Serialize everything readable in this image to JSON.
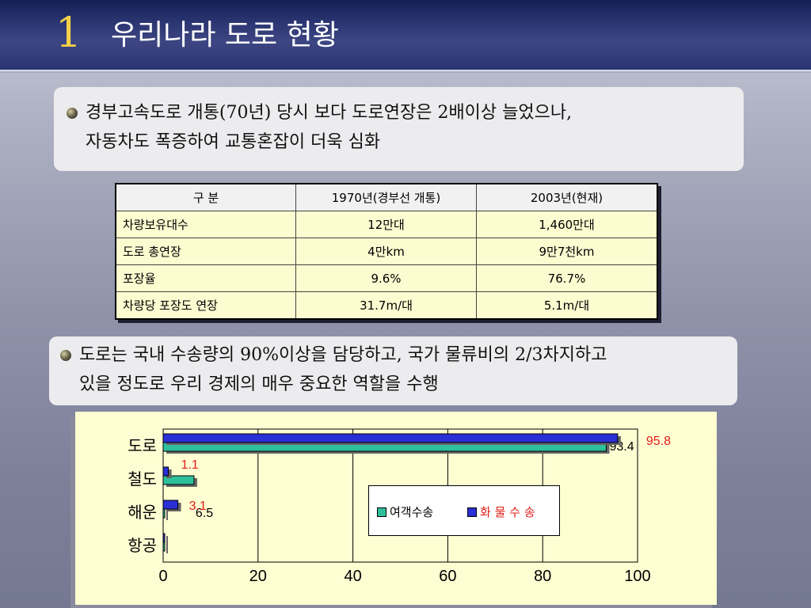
{
  "slide": {
    "number": "1",
    "title": "우리나라 도로 현황"
  },
  "point1": {
    "line1": "경부고속도로 개통(70년) 당시 보다 도로연장은 2배이상 늘었으나,",
    "line2": "자동차도 폭증하여 교통혼잡이 더욱 심화"
  },
  "table": {
    "headers": [
      "구 분",
      "1970년(경부선 개통)",
      "2003년(현재)"
    ],
    "rows": [
      [
        "차량보유대수",
        "12만대",
        "1,460만대"
      ],
      [
        "도로 총연장",
        "4만km",
        "9만7천km"
      ],
      [
        "포장율",
        "9.6%",
        "76.7%"
      ],
      [
        "차량당 포장도 연장",
        "31.7m/대",
        "5.1m/대"
      ]
    ]
  },
  "point2": {
    "line1": "도로는 국내 수송량의 90%이상을 담당하고, 국가 물류비의 2/3차지하고",
    "line2": "있을 정도로 우리 경제의 매우 중요한 역할을 수행"
  },
  "chart_data": {
    "type": "bar",
    "orientation": "horizontal",
    "categories": [
      "도로",
      "철도",
      "해운",
      "항공"
    ],
    "series": [
      {
        "name": "여객수송",
        "values": [
          93.4,
          6.5,
          0,
          0
        ],
        "labels": [
          "93.4",
          "6.5",
          "",
          ""
        ],
        "color": "#2ec09c",
        "label_color": "#000000"
      },
      {
        "name": "화 물 수 송",
        "values": [
          95.8,
          1.1,
          3.1,
          0
        ],
        "labels": [
          "95.8",
          "1.1",
          "3.1",
          ""
        ],
        "color": "#2b2fd6",
        "label_color": "#e0201a"
      }
    ],
    "xlim": [
      0,
      100
    ],
    "xticks": [
      "0",
      "20",
      "40",
      "60",
      "80",
      "100"
    ],
    "grid": true,
    "legend_position": "center-right"
  },
  "colors": {
    "title_number": "#f2d04a",
    "title_bar": "#2a3470",
    "table_cell": "#fdfbd0",
    "chart_bg": "#fffdd2"
  },
  "icons": {
    "bullet": "sphere-bullet-icon"
  }
}
